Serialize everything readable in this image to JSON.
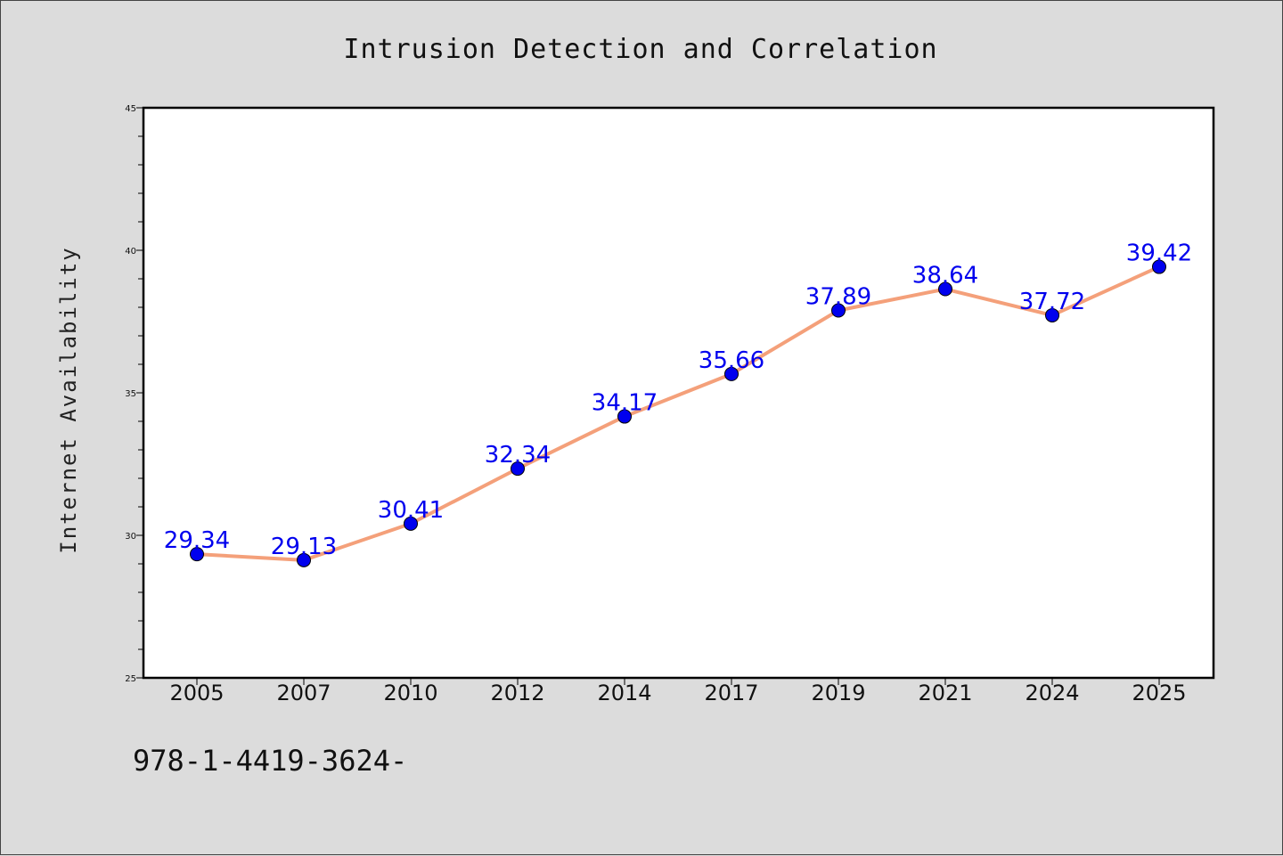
{
  "chart_data": {
    "type": "line",
    "title": "Intrusion Detection and Correlation",
    "ylabel": "Internet Availability",
    "xlabel": "",
    "categories": [
      "2005",
      "2007",
      "2010",
      "2012",
      "2014",
      "2017",
      "2019",
      "2021",
      "2024",
      "2025"
    ],
    "values": [
      29.34,
      29.13,
      30.41,
      32.34,
      34.17,
      35.66,
      37.89,
      38.64,
      37.72,
      39.42
    ],
    "data_labels": [
      "29.34",
      "29.13",
      "30.41",
      "32.34",
      "34.17",
      "35.66",
      "37.89",
      "38.64",
      "37.72",
      "39.42"
    ],
    "ylim": [
      25,
      45
    ],
    "yticks": [
      "25",
      "30",
      "35",
      "40",
      "45"
    ],
    "grid": false,
    "line_color": "#f4a07a",
    "marker_color": "#0000ee",
    "label_color": "#0000ee"
  },
  "footer": {
    "text": "978-1-4419-3624-"
  }
}
